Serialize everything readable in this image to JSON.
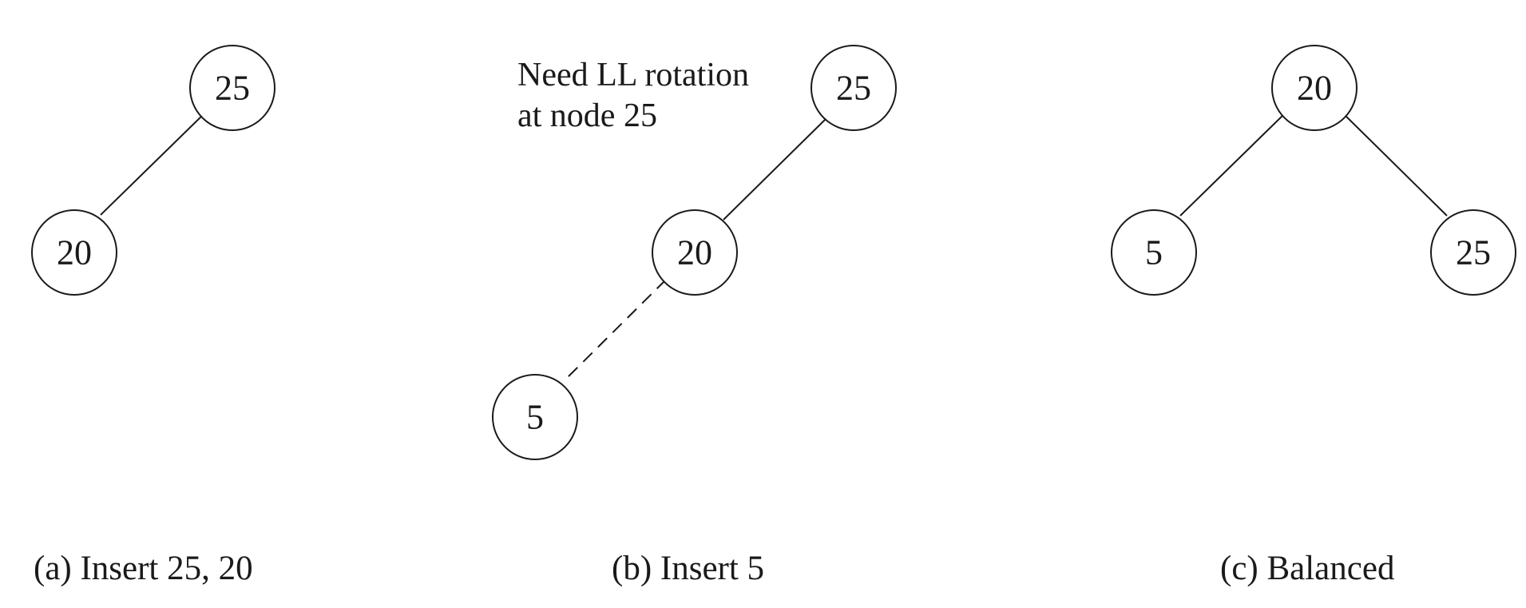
{
  "panels": [
    {
      "caption": "(a) Insert 25, 20",
      "nodes": [
        {
          "id": "a-25",
          "label": "25"
        },
        {
          "id": "a-20",
          "label": "20"
        }
      ],
      "edges": [
        {
          "from": "a-25",
          "to": "a-20",
          "style": "solid"
        }
      ]
    },
    {
      "caption": "(b) Insert 5",
      "annotation": {
        "line1": "Need LL rotation",
        "line2": "at node 25"
      },
      "nodes": [
        {
          "id": "b-25",
          "label": "25"
        },
        {
          "id": "b-20",
          "label": "20"
        },
        {
          "id": "b-5",
          "label": "5"
        }
      ],
      "edges": [
        {
          "from": "b-25",
          "to": "b-20",
          "style": "solid"
        },
        {
          "from": "b-20",
          "to": "b-5",
          "style": "dashed"
        }
      ]
    },
    {
      "caption": "(c) Balanced",
      "nodes": [
        {
          "id": "c-20",
          "label": "20"
        },
        {
          "id": "c-5",
          "label": "5"
        },
        {
          "id": "c-25",
          "label": "25"
        }
      ],
      "edges": [
        {
          "from": "c-20",
          "to": "c-5",
          "style": "solid"
        },
        {
          "from": "c-20",
          "to": "c-25",
          "style": "solid"
        }
      ]
    }
  ],
  "colors": {
    "stroke": "#1a1a1a",
    "background": "#ffffff"
  }
}
